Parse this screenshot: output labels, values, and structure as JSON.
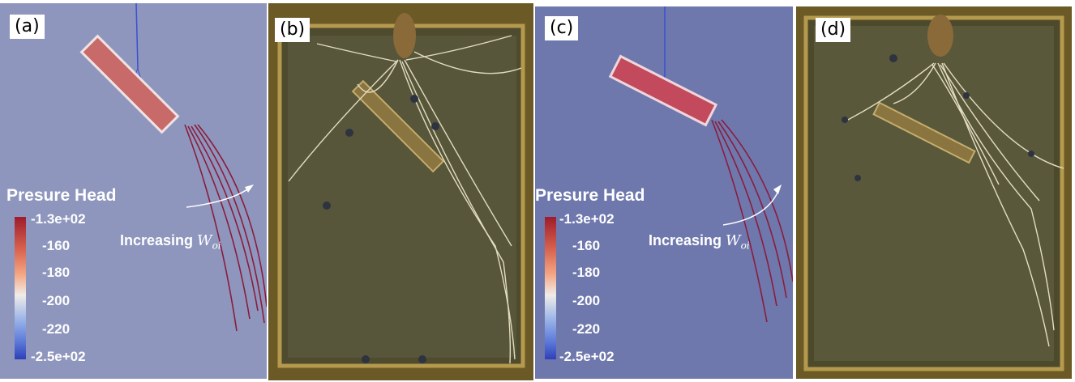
{
  "panels": {
    "a": {
      "label": "(a)"
    },
    "b": {
      "label": "(b)"
    },
    "c": {
      "label": "(c)"
    },
    "d": {
      "label": "(d)"
    }
  },
  "legend": {
    "title": "Presure Head",
    "ticks": [
      "-1.3e+02",
      "-160",
      "-180",
      "-200",
      "-220",
      "-2.5e+02"
    ],
    "colormap": [
      "#9e1c2c",
      "#d6604d",
      "#f4a582",
      "#f0ece8",
      "#9bb4e8",
      "#5a78d8",
      "#2f3fb8"
    ]
  },
  "annotation": {
    "text": "Increasing ",
    "symbol": "W",
    "subscript": "oi"
  }
}
